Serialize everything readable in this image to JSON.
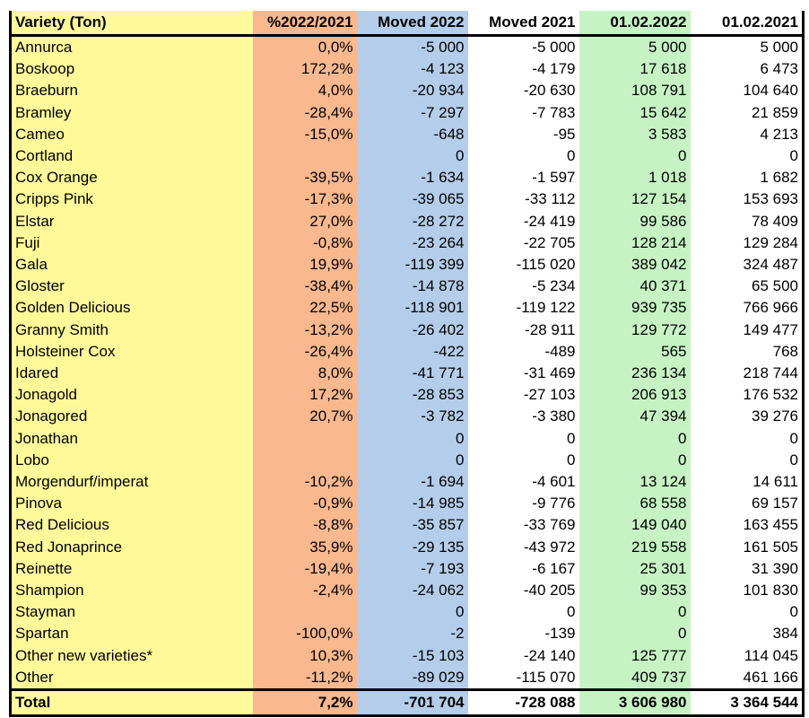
{
  "headers": [
    "Variety (Ton)",
    "%2022/2021",
    "Moved 2022",
    "Moved 2021",
    "01.02.2022",
    "01.02.2021"
  ],
  "rows": [
    [
      "Annurca",
      "0,0%",
      "-5 000",
      "-5 000",
      "5 000",
      "5 000"
    ],
    [
      "Boskoop",
      "172,2%",
      "-4 123",
      "-4 179",
      "17 618",
      "6 473"
    ],
    [
      "Braeburn",
      "4,0%",
      "-20 934",
      "-20 630",
      "108 791",
      "104 640"
    ],
    [
      "Bramley",
      "-28,4%",
      "-7 297",
      "-7 783",
      "15 642",
      "21 859"
    ],
    [
      "Cameo",
      "-15,0%",
      "-648",
      "-95",
      "3 583",
      "4 213"
    ],
    [
      "Cortland",
      "",
      "0",
      "0",
      "0",
      "0"
    ],
    [
      "Cox Orange",
      "-39,5%",
      "-1 634",
      "-1 597",
      "1 018",
      "1 682"
    ],
    [
      "Cripps Pink",
      "-17,3%",
      "-39 065",
      "-33 112",
      "127 154",
      "153 693"
    ],
    [
      "Elstar",
      "27,0%",
      "-28 272",
      "-24 419",
      "99 586",
      "78 409"
    ],
    [
      "Fuji",
      "-0,8%",
      "-23 264",
      "-22 705",
      "128 214",
      "129 284"
    ],
    [
      "Gala",
      "19,9%",
      "-119 399",
      "-115 020",
      "389 042",
      "324 487"
    ],
    [
      "Gloster",
      "-38,4%",
      "-14 878",
      "-5 234",
      "40 371",
      "65 500"
    ],
    [
      "Golden Delicious",
      "22,5%",
      "-118 901",
      "-119 122",
      "939 735",
      "766 966"
    ],
    [
      "Granny Smith",
      "-13,2%",
      "-26 402",
      "-28 911",
      "129 772",
      "149 477"
    ],
    [
      "Holsteiner Cox",
      "-26,4%",
      "-422",
      "-489",
      "565",
      "768"
    ],
    [
      "Idared",
      "8,0%",
      "-41 771",
      "-31 469",
      "236 134",
      "218 744"
    ],
    [
      "Jonagold",
      "17,2%",
      "-28 853",
      "-27 103",
      "206 913",
      "176 532"
    ],
    [
      "Jonagored",
      "20,7%",
      "-3 782",
      "-3 380",
      "47 394",
      "39 276"
    ],
    [
      "Jonathan",
      "",
      "0",
      "0",
      "0",
      "0"
    ],
    [
      "Lobo",
      "",
      "0",
      "0",
      "0",
      "0"
    ],
    [
      "Morgendurf/imperat",
      "-10,2%",
      "-1 694",
      "-4 601",
      "13 124",
      "14 611"
    ],
    [
      "Pinova",
      "-0,9%",
      "-14 985",
      "-9 776",
      "68 558",
      "69 157"
    ],
    [
      "Red Delicious",
      "-8,8%",
      "-35 857",
      "-33 769",
      "149 040",
      "163 455"
    ],
    [
      "Red Jonaprince",
      "35,9%",
      "-29 135",
      "-43 972",
      "219 558",
      "161 505"
    ],
    [
      "Reinette",
      "-19,4%",
      "-7 193",
      "-6 167",
      "25 301",
      "31 390"
    ],
    [
      "Shampion",
      "-2,4%",
      "-24 062",
      "-40 205",
      "99 353",
      "101 830"
    ],
    [
      "Stayman",
      "",
      "0",
      "0",
      "0",
      "0"
    ],
    [
      "Spartan",
      "-100,0%",
      "-2",
      "-139",
      "0",
      "384"
    ],
    [
      "Other new varieties*",
      "10,3%",
      "-15 103",
      "-24 140",
      "125 777",
      "114 045"
    ],
    [
      "Other",
      "-11,2%",
      "-89 029",
      "-115 070",
      "409 737",
      "461 166"
    ]
  ],
  "total": [
    "Total",
    "7,2%",
    "-701 704",
    "-728 088",
    "3 606 980",
    "3 364 544"
  ],
  "colors": {
    "col_variety": "#fff99a",
    "col_pct": "#f9b88e",
    "col_moved2022": "#b4cdea",
    "col_moved2021": "#ffffff",
    "col_stock2022": "#c7f3c4",
    "col_stock2021": "#ffffff"
  }
}
